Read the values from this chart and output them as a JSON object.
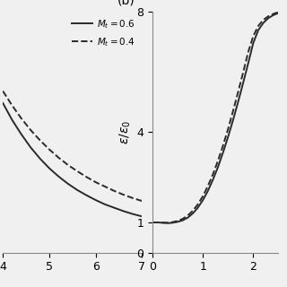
{
  "panel_a": {
    "xlim": [
      4,
      7
    ],
    "ylim": [
      0.0,
      0.5
    ],
    "solid_x": [
      4.0,
      4.2,
      4.4,
      4.6,
      4.8,
      5.0,
      5.2,
      5.4,
      5.6,
      5.8,
      6.0,
      6.2,
      6.4,
      6.6,
      6.8,
      7.0
    ],
    "solid_y": [
      0.31,
      0.275,
      0.245,
      0.218,
      0.195,
      0.175,
      0.158,
      0.143,
      0.13,
      0.119,
      0.109,
      0.1,
      0.093,
      0.086,
      0.08,
      0.075
    ],
    "dashed_x": [
      4.0,
      4.2,
      4.4,
      4.6,
      4.8,
      5.0,
      5.2,
      5.4,
      5.6,
      5.8,
      6.0,
      6.2,
      6.4,
      6.6,
      6.8,
      7.0
    ],
    "dashed_y": [
      0.335,
      0.305,
      0.278,
      0.254,
      0.233,
      0.214,
      0.197,
      0.182,
      0.169,
      0.157,
      0.146,
      0.137,
      0.128,
      0.12,
      0.113,
      0.107
    ],
    "xticks": [
      4,
      5,
      6,
      7
    ],
    "legend_solid": "$M_t = 0.6$",
    "legend_dashed": "$M_t = 0.4$"
  },
  "panel_b": {
    "label": "(b)",
    "xlim": [
      0,
      2.5
    ],
    "ylim": [
      0,
      8
    ],
    "solid_x": [
      0.0,
      0.1,
      0.2,
      0.3,
      0.35,
      0.4,
      0.5,
      0.6,
      0.7,
      0.8,
      0.9,
      1.0,
      1.1,
      1.2,
      1.3,
      1.4,
      1.5,
      1.6,
      1.7,
      1.8,
      1.9,
      2.0,
      2.1,
      2.2,
      2.3,
      2.4,
      2.5
    ],
    "solid_y": [
      1.0,
      1.0,
      0.99,
      0.98,
      0.98,
      0.99,
      1.02,
      1.07,
      1.16,
      1.3,
      1.49,
      1.74,
      2.05,
      2.42,
      2.84,
      3.32,
      3.84,
      4.4,
      5.0,
      5.63,
      6.28,
      6.95,
      7.38,
      7.62,
      7.78,
      7.88,
      7.95
    ],
    "dashed_x": [
      0.0,
      0.1,
      0.2,
      0.3,
      0.35,
      0.4,
      0.5,
      0.6,
      0.7,
      0.8,
      0.9,
      1.0,
      1.1,
      1.2,
      1.3,
      1.4,
      1.5,
      1.6,
      1.7,
      1.8,
      1.9,
      2.0,
      2.1,
      2.2,
      2.3,
      2.4,
      2.5
    ],
    "dashed_y": [
      1.0,
      1.0,
      0.99,
      0.99,
      0.99,
      1.01,
      1.05,
      1.12,
      1.23,
      1.39,
      1.6,
      1.87,
      2.21,
      2.6,
      3.05,
      3.55,
      4.1,
      4.7,
      5.33,
      5.98,
      6.65,
      7.18,
      7.52,
      7.72,
      7.84,
      7.92,
      7.98
    ],
    "xticks": [
      0,
      1,
      2
    ],
    "yticks": [
      0,
      1,
      4,
      8
    ],
    "ylabel": "$\\epsilon/\\epsilon_0$"
  },
  "line_color": "#2a2a2a",
  "background_color": "#f0f0f0",
  "fontsize": 9
}
